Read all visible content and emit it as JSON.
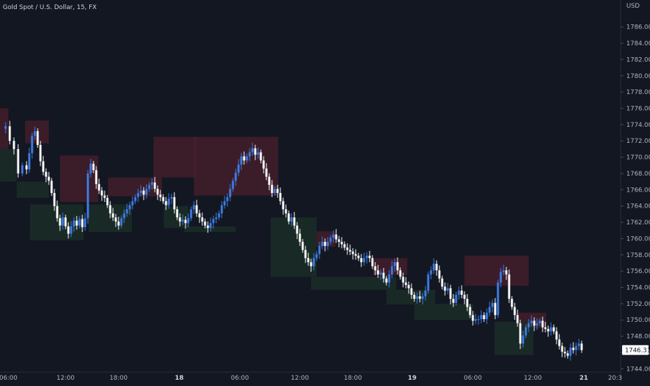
{
  "header": {
    "symbol_title": "Gold Spot / U.S. Dollar, 15, FX"
  },
  "currency_label": "USD",
  "chart_data": {
    "type": "candlestick",
    "title": "Gold Spot / U.S. Dollar, 15, FX",
    "ylabel": "USD",
    "ylim": [
      1743.6,
      1787.6
    ],
    "xlim": [
      0,
      882
    ],
    "grid": false,
    "y_ticks": [
      "1744.00",
      "1746.00",
      "1748.00",
      "1750.00",
      "1752.00",
      "1754.00",
      "1756.00",
      "1758.00",
      "1760.00",
      "1762.00",
      "1764.00",
      "1766.00",
      "1768.00",
      "1770.00",
      "1772.00",
      "1774.00",
      "1776.00",
      "1778.00",
      "1780.00",
      "1782.00",
      "1784.00",
      "1786.00"
    ],
    "x_ticks": [
      {
        "label": "06:00",
        "x": 12,
        "bold": false
      },
      {
        "label": "12:00",
        "x": 94,
        "bold": false
      },
      {
        "label": "18:00",
        "x": 170,
        "bold": false
      },
      {
        "label": "18",
        "x": 257,
        "bold": true
      },
      {
        "label": "06:00",
        "x": 344,
        "bold": false
      },
      {
        "label": "12:00",
        "x": 430,
        "bold": false
      },
      {
        "label": "18:00",
        "x": 506,
        "bold": false
      },
      {
        "label": "19",
        "x": 591,
        "bold": true
      },
      {
        "label": "06:00",
        "x": 678,
        "bold": false
      },
      {
        "label": "12:00",
        "x": 764,
        "bold": false
      },
      {
        "label": "21",
        "x": 837,
        "bold": true
      },
      {
        "label": "20:3",
        "x": 882,
        "bold": false
      }
    ],
    "last_price": "1746.31",
    "last_price_value": 1746.31,
    "colors": {
      "bull": "#3d7ee8",
      "bear": "#ffffff",
      "supply_zone": "#4a1f2c",
      "demand_zone": "#1b2d27",
      "background": "#131722",
      "axis_text": "#b2b5be"
    },
    "zones": [
      {
        "type": "supply",
        "x0": 0,
        "x1": 12,
        "y_top": 1776.0,
        "y_bottom": 1771.0
      },
      {
        "type": "demand",
        "x0": 0,
        "x1": 24,
        "y_top": 1771.0,
        "y_bottom": 1767.0
      },
      {
        "type": "supply",
        "x0": 36,
        "x1": 70,
        "y_top": 1774.5,
        "y_bottom": 1771.7
      },
      {
        "type": "demand",
        "x0": 24,
        "x1": 70,
        "y_top": 1767.0,
        "y_bottom": 1765.0
      },
      {
        "type": "supply",
        "x0": 86,
        "x1": 141,
        "y_top": 1770.2,
        "y_bottom": 1764.5
      },
      {
        "type": "demand",
        "x0": 43,
        "x1": 120,
        "y_top": 1764.2,
        "y_bottom": 1759.8
      },
      {
        "type": "supply",
        "x0": 155,
        "x1": 232,
        "y_top": 1767.5,
        "y_bottom": 1765.2
      },
      {
        "type": "demand",
        "x0": 127,
        "x1": 189,
        "y_top": 1764.2,
        "y_bottom": 1760.8
      },
      {
        "type": "supply",
        "x0": 220,
        "x1": 282,
        "y_top": 1772.5,
        "y_bottom": 1767.5
      },
      {
        "type": "supply",
        "x0": 278,
        "x1": 399,
        "y_top": 1772.5,
        "y_bottom": 1765.3
      },
      {
        "type": "demand",
        "x0": 235,
        "x1": 270,
        "y_top": 1764.0,
        "y_bottom": 1761.3
      },
      {
        "type": "demand",
        "x0": 264,
        "x1": 338,
        "y_top": 1761.5,
        "y_bottom": 1760.8
      },
      {
        "type": "demand",
        "x0": 388,
        "x1": 454,
        "y_top": 1762.6,
        "y_bottom": 1755.3
      },
      {
        "type": "supply",
        "x0": 454,
        "x1": 481,
        "y_top": 1760.9,
        "y_bottom": 1759.0
      },
      {
        "type": "supply",
        "x0": 535,
        "x1": 584,
        "y_top": 1757.6,
        "y_bottom": 1755.5
      },
      {
        "type": "demand",
        "x0": 446,
        "x1": 568,
        "y_top": 1755.3,
        "y_bottom": 1753.7
      },
      {
        "type": "demand",
        "x0": 554,
        "x1": 624,
        "y_top": 1753.7,
        "y_bottom": 1751.9
      },
      {
        "type": "demand",
        "x0": 594,
        "x1": 678,
        "y_top": 1752.0,
        "y_bottom": 1750.0
      },
      {
        "type": "supply",
        "x0": 666,
        "x1": 758,
        "y_top": 1757.9,
        "y_bottom": 1754.2
      },
      {
        "type": "supply",
        "x0": 741,
        "x1": 783,
        "y_top": 1750.9,
        "y_bottom": 1749.0
      },
      {
        "type": "demand",
        "x0": 709,
        "x1": 765,
        "y_top": 1749.8,
        "y_bottom": 1745.7
      }
    ],
    "close_path": [
      [
        2,
        1773.5
      ],
      [
        8,
        1773.8
      ],
      [
        14,
        1772.0
      ],
      [
        20,
        1771.0
      ],
      [
        26,
        1768.0
      ],
      [
        32,
        1769.0
      ],
      [
        38,
        1768.5
      ],
      [
        42,
        1770.5
      ],
      [
        46,
        1772.6
      ],
      [
        50,
        1773.2
      ],
      [
        54,
        1771.5
      ],
      [
        58,
        1769.5
      ],
      [
        62,
        1768.2
      ],
      [
        66,
        1767.6
      ],
      [
        70,
        1767.1
      ],
      [
        74,
        1765.6
      ],
      [
        78,
        1764.0
      ],
      [
        82,
        1762.5
      ],
      [
        86,
        1761.6
      ],
      [
        90,
        1762.6
      ],
      [
        94,
        1761.5
      ],
      [
        98,
        1760.6
      ],
      [
        102,
        1761.5
      ],
      [
        106,
        1762.2
      ],
      [
        110,
        1761.6
      ],
      [
        114,
        1762.4
      ],
      [
        118,
        1761.4
      ],
      [
        122,
        1762.5
      ],
      [
        126,
        1768.0
      ],
      [
        130,
        1769.2
      ],
      [
        134,
        1768.4
      ],
      [
        138,
        1766.7
      ],
      [
        142,
        1765.9
      ],
      [
        146,
        1765.3
      ],
      [
        150,
        1765.0
      ],
      [
        154,
        1764.1
      ],
      [
        158,
        1763.1
      ],
      [
        162,
        1762.6
      ],
      [
        166,
        1762.1
      ],
      [
        170,
        1761.6
      ],
      [
        174,
        1762.5
      ],
      [
        178,
        1763.1
      ],
      [
        182,
        1763.6
      ],
      [
        186,
        1764.1
      ],
      [
        190,
        1764.6
      ],
      [
        194,
        1765.1
      ],
      [
        198,
        1765.6
      ],
      [
        202,
        1765.9
      ],
      [
        206,
        1765.4
      ],
      [
        210,
        1766.1
      ],
      [
        214,
        1766.6
      ],
      [
        218,
        1766.9
      ],
      [
        222,
        1766.1
      ],
      [
        226,
        1765.4
      ],
      [
        230,
        1765.1
      ],
      [
        234,
        1764.6
      ],
      [
        238,
        1764.1
      ],
      [
        242,
        1764.9
      ],
      [
        246,
        1765.1
      ],
      [
        250,
        1763.6
      ],
      [
        254,
        1762.6
      ],
      [
        258,
        1762.1
      ],
      [
        262,
        1762.3
      ],
      [
        266,
        1761.9
      ],
      [
        270,
        1762.5
      ],
      [
        274,
        1763.6
      ],
      [
        278,
        1764.1
      ],
      [
        282,
        1763.1
      ],
      [
        286,
        1762.6
      ],
      [
        290,
        1762.1
      ],
      [
        294,
        1761.6
      ],
      [
        298,
        1761.3
      ],
      [
        302,
        1761.9
      ],
      [
        306,
        1762.4
      ],
      [
        310,
        1762.6
      ],
      [
        314,
        1763.1
      ],
      [
        318,
        1764.1
      ],
      [
        322,
        1764.6
      ],
      [
        326,
        1765.1
      ],
      [
        330,
        1766.1
      ],
      [
        334,
        1767.1
      ],
      [
        338,
        1768.1
      ],
      [
        342,
        1769.1
      ],
      [
        346,
        1770.1
      ],
      [
        350,
        1769.6
      ],
      [
        354,
        1770.1
      ],
      [
        358,
        1770.6
      ],
      [
        362,
        1771.1
      ],
      [
        366,
        1770.3
      ],
      [
        370,
        1770.6
      ],
      [
        374,
        1769.6
      ],
      [
        378,
        1768.6
      ],
      [
        382,
        1767.6
      ],
      [
        386,
        1766.6
      ],
      [
        390,
        1765.6
      ],
      [
        394,
        1766.1
      ],
      [
        398,
        1765.6
      ],
      [
        402,
        1764.6
      ],
      [
        406,
        1763.6
      ],
      [
        410,
        1763.1
      ],
      [
        414,
        1762.1
      ],
      [
        418,
        1762.6
      ],
      [
        422,
        1761.6
      ],
      [
        426,
        1760.6
      ],
      [
        430,
        1759.6
      ],
      [
        434,
        1758.6
      ],
      [
        438,
        1757.6
      ],
      [
        442,
        1757.1
      ],
      [
        446,
        1756.6
      ],
      [
        450,
        1757.6
      ],
      [
        454,
        1758.1
      ],
      [
        458,
        1759.1
      ],
      [
        462,
        1759.6
      ],
      [
        466,
        1759.1
      ],
      [
        470,
        1759.6
      ],
      [
        474,
        1760.1
      ],
      [
        478,
        1760.5
      ],
      [
        482,
        1759.9
      ],
      [
        486,
        1759.6
      ],
      [
        490,
        1759.3
      ],
      [
        494,
        1758.9
      ],
      [
        498,
        1758.6
      ],
      [
        502,
        1758.4
      ],
      [
        506,
        1758.1
      ],
      [
        510,
        1757.9
      ],
      [
        514,
        1757.6
      ],
      [
        518,
        1757.1
      ],
      [
        522,
        1757.6
      ],
      [
        526,
        1757.9
      ],
      [
        530,
        1757.6
      ],
      [
        534,
        1756.6
      ],
      [
        538,
        1756.1
      ],
      [
        542,
        1755.6
      ],
      [
        546,
        1755.8
      ],
      [
        550,
        1755.1
      ],
      [
        554,
        1754.6
      ],
      [
        558,
        1755.6
      ],
      [
        562,
        1756.6
      ],
      [
        566,
        1757.1
      ],
      [
        570,
        1756.1
      ],
      [
        574,
        1755.3
      ],
      [
        578,
        1754.6
      ],
      [
        582,
        1754.3
      ],
      [
        586,
        1753.9
      ],
      [
        590,
        1753.1
      ],
      [
        594,
        1752.6
      ],
      [
        598,
        1752.9
      ],
      [
        602,
        1752.6
      ],
      [
        606,
        1752.9
      ],
      [
        610,
        1753.6
      ],
      [
        614,
        1755.6
      ],
      [
        618,
        1756.1
      ],
      [
        622,
        1756.9
      ],
      [
        626,
        1756.1
      ],
      [
        630,
        1755.1
      ],
      [
        634,
        1754.1
      ],
      [
        638,
        1753.6
      ],
      [
        642,
        1753.9
      ],
      [
        646,
        1752.6
      ],
      [
        650,
        1752.1
      ],
      [
        654,
        1753.1
      ],
      [
        658,
        1753.6
      ],
      [
        662,
        1753.1
      ],
      [
        666,
        1752.6
      ],
      [
        670,
        1751.6
      ],
      [
        674,
        1750.6
      ],
      [
        678,
        1749.9
      ],
      [
        682,
        1750.1
      ],
      [
        686,
        1750.1
      ],
      [
        690,
        1750.6
      ],
      [
        694,
        1750.1
      ],
      [
        698,
        1750.9
      ],
      [
        702,
        1751.6
      ],
      [
        706,
        1752.1
      ],
      [
        710,
        1750.6
      ],
      [
        714,
        1754.6
      ],
      [
        718,
        1755.9
      ],
      [
        722,
        1756.1
      ],
      [
        726,
        1755.6
      ],
      [
        730,
        1752.6
      ],
      [
        734,
        1751.6
      ],
      [
        738,
        1750.6
      ],
      [
        742,
        1749.6
      ],
      [
        746,
        1747.1
      ],
      [
        750,
        1748.1
      ],
      [
        754,
        1749.1
      ],
      [
        758,
        1749.6
      ],
      [
        762,
        1749.9
      ],
      [
        766,
        1749.3
      ],
      [
        770,
        1749.6
      ],
      [
        774,
        1749.9
      ],
      [
        778,
        1749.1
      ],
      [
        782,
        1748.9
      ],
      [
        786,
        1748.6
      ],
      [
        790,
        1749.1
      ],
      [
        794,
        1748.6
      ],
      [
        798,
        1747.6
      ],
      [
        802,
        1746.8
      ],
      [
        806,
        1746.1
      ],
      [
        810,
        1745.9
      ],
      [
        814,
        1745.6
      ],
      [
        818,
        1746.6
      ],
      [
        822,
        1746.3
      ],
      [
        826,
        1746.8
      ],
      [
        830,
        1747.1
      ],
      [
        834,
        1746.3
      ]
    ]
  }
}
